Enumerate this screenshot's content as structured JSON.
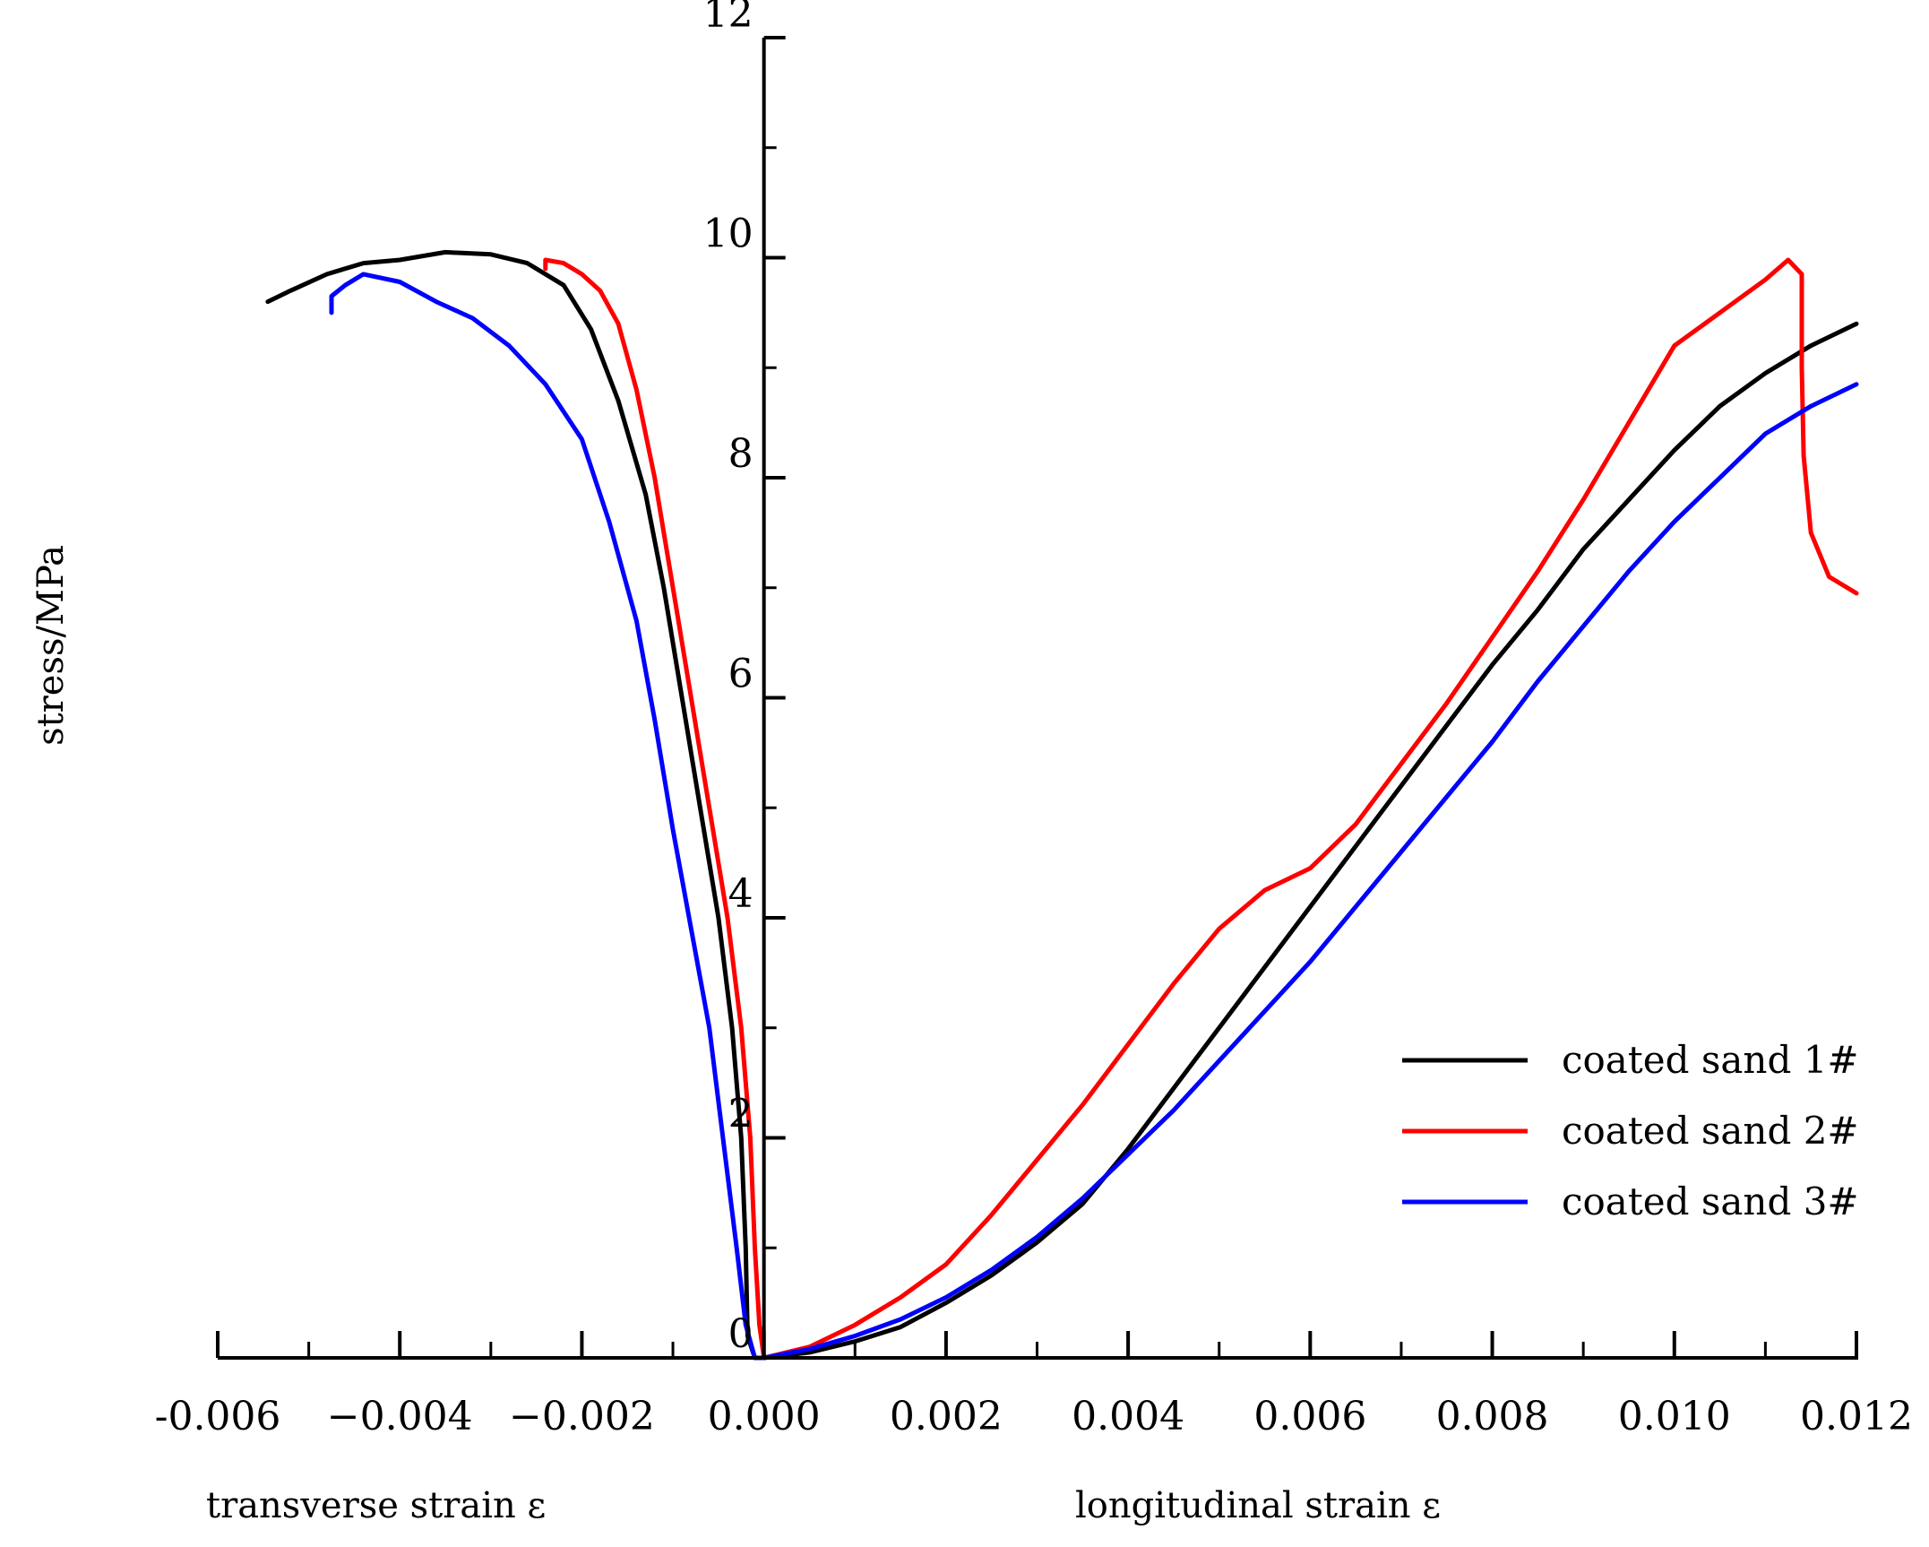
{
  "chart_data": {
    "type": "line",
    "title": "",
    "ylabel": "stress/MPa",
    "xlabel_left": "transverse strain ε",
    "xlabel_right": "longitudinal strain ε",
    "xlim": [
      -0.006,
      0.012
    ],
    "ylim": [
      0,
      12
    ],
    "x_ticks": [
      "-0.006",
      "−0.004",
      "−0.002",
      "0.000",
      "0.002",
      "0.004",
      "0.006",
      "0.008",
      "0.010",
      "0.012"
    ],
    "x_tick_values": [
      -0.006,
      -0.004,
      -0.002,
      0.0,
      0.002,
      0.004,
      0.006,
      0.008,
      0.01,
      0.012
    ],
    "y_ticks": [
      "0",
      "2",
      "4",
      "6",
      "8",
      "10",
      "12"
    ],
    "y_tick_values": [
      0,
      2,
      4,
      6,
      8,
      10,
      12
    ],
    "grid": false,
    "legend_position": "bottom-right",
    "series": [
      {
        "name": "coated sand 1#",
        "color": "#000000",
        "transverse": [
          [
            -0.00545,
            9.6
          ],
          [
            -0.0052,
            9.7
          ],
          [
            -0.0048,
            9.85
          ],
          [
            -0.0044,
            9.95
          ],
          [
            -0.004,
            9.98
          ],
          [
            -0.0035,
            10.05
          ],
          [
            -0.003,
            10.03
          ],
          [
            -0.0026,
            9.95
          ],
          [
            -0.0022,
            9.75
          ],
          [
            -0.0019,
            9.35
          ],
          [
            -0.0016,
            8.7
          ],
          [
            -0.0013,
            7.85
          ],
          [
            -0.0011,
            7.0
          ],
          [
            -0.0009,
            6.0
          ],
          [
            -0.0007,
            5.0
          ],
          [
            -0.0005,
            4.0
          ],
          [
            -0.00035,
            3.0
          ],
          [
            -0.00025,
            2.0
          ],
          [
            -0.0002,
            1.0
          ],
          [
            -0.00018,
            0.2
          ],
          [
            -0.0001,
            0.0
          ],
          [
            0.0,
            0.0
          ]
        ],
        "longitudinal": [
          [
            0.0,
            0.0
          ],
          [
            0.0005,
            0.05
          ],
          [
            0.001,
            0.15
          ],
          [
            0.0015,
            0.28
          ],
          [
            0.002,
            0.5
          ],
          [
            0.0025,
            0.75
          ],
          [
            0.003,
            1.05
          ],
          [
            0.0035,
            1.4
          ],
          [
            0.004,
            1.9
          ],
          [
            0.0045,
            2.45
          ],
          [
            0.005,
            3.0
          ],
          [
            0.0055,
            3.55
          ],
          [
            0.006,
            4.1
          ],
          [
            0.0065,
            4.65
          ],
          [
            0.007,
            5.2
          ],
          [
            0.0075,
            5.75
          ],
          [
            0.008,
            6.3
          ],
          [
            0.0085,
            6.8
          ],
          [
            0.009,
            7.35
          ],
          [
            0.0095,
            7.8
          ],
          [
            0.01,
            8.25
          ],
          [
            0.0105,
            8.65
          ],
          [
            0.011,
            8.95
          ],
          [
            0.0115,
            9.2
          ],
          [
            0.012,
            9.4
          ]
        ]
      },
      {
        "name": "coated sand 2#",
        "color": "#ff0000",
        "transverse": [
          [
            -0.0024,
            9.9
          ],
          [
            -0.0024,
            9.98
          ],
          [
            -0.0022,
            9.95
          ],
          [
            -0.002,
            9.85
          ],
          [
            -0.0018,
            9.7
          ],
          [
            -0.0016,
            9.4
          ],
          [
            -0.0014,
            8.8
          ],
          [
            -0.0012,
            8.0
          ],
          [
            -0.001,
            7.0
          ],
          [
            -0.0008,
            6.0
          ],
          [
            -0.0006,
            5.0
          ],
          [
            -0.0004,
            4.0
          ],
          [
            -0.00025,
            3.0
          ],
          [
            -0.00015,
            2.0
          ],
          [
            -0.0001,
            1.0
          ],
          [
            -5e-05,
            0.3
          ],
          [
            0.0,
            0.0
          ]
        ],
        "longitudinal": [
          [
            0.0,
            0.0
          ],
          [
            0.0005,
            0.1
          ],
          [
            0.001,
            0.3
          ],
          [
            0.0015,
            0.55
          ],
          [
            0.002,
            0.85
          ],
          [
            0.0025,
            1.3
          ],
          [
            0.003,
            1.8
          ],
          [
            0.0035,
            2.3
          ],
          [
            0.004,
            2.85
          ],
          [
            0.0045,
            3.4
          ],
          [
            0.005,
            3.9
          ],
          [
            0.0055,
            4.25
          ],
          [
            0.006,
            4.45
          ],
          [
            0.0065,
            4.85
          ],
          [
            0.007,
            5.4
          ],
          [
            0.0075,
            5.95
          ],
          [
            0.008,
            6.55
          ],
          [
            0.0085,
            7.15
          ],
          [
            0.009,
            7.8
          ],
          [
            0.0095,
            8.5
          ],
          [
            0.01,
            9.2
          ],
          [
            0.0105,
            9.5
          ],
          [
            0.011,
            9.8
          ],
          [
            0.01125,
            9.98
          ],
          [
            0.0114,
            9.85
          ],
          [
            0.0114,
            9.0
          ],
          [
            0.01142,
            8.2
          ],
          [
            0.0115,
            7.5
          ],
          [
            0.0117,
            7.1
          ],
          [
            0.012,
            6.95
          ]
        ]
      },
      {
        "name": "coated sand 3#",
        "color": "#0000ff",
        "transverse": [
          [
            -0.00475,
            9.5
          ],
          [
            -0.00475,
            9.65
          ],
          [
            -0.0046,
            9.75
          ],
          [
            -0.0044,
            9.85
          ],
          [
            -0.004,
            9.78
          ],
          [
            -0.0036,
            9.6
          ],
          [
            -0.0032,
            9.45
          ],
          [
            -0.0028,
            9.2
          ],
          [
            -0.0024,
            8.85
          ],
          [
            -0.002,
            8.35
          ],
          [
            -0.0017,
            7.6
          ],
          [
            -0.0014,
            6.7
          ],
          [
            -0.0012,
            5.8
          ],
          [
            -0.001,
            4.8
          ],
          [
            -0.0008,
            3.9
          ],
          [
            -0.0006,
            3.0
          ],
          [
            -0.00045,
            2.0
          ],
          [
            -0.0003,
            1.0
          ],
          [
            -0.0002,
            0.3
          ],
          [
            -0.0001,
            0.0
          ],
          [
            0.0,
            0.0
          ]
        ],
        "longitudinal": [
          [
            0.0,
            0.0
          ],
          [
            0.0005,
            0.08
          ],
          [
            0.001,
            0.2
          ],
          [
            0.0015,
            0.35
          ],
          [
            0.002,
            0.55
          ],
          [
            0.0025,
            0.8
          ],
          [
            0.003,
            1.1
          ],
          [
            0.0035,
            1.45
          ],
          [
            0.004,
            1.85
          ],
          [
            0.0045,
            2.25
          ],
          [
            0.005,
            2.7
          ],
          [
            0.0055,
            3.15
          ],
          [
            0.006,
            3.6
          ],
          [
            0.0065,
            4.1
          ],
          [
            0.007,
            4.6
          ],
          [
            0.0075,
            5.1
          ],
          [
            0.008,
            5.6
          ],
          [
            0.0085,
            6.15
          ],
          [
            0.009,
            6.65
          ],
          [
            0.0095,
            7.15
          ],
          [
            0.01,
            7.6
          ],
          [
            0.0105,
            8.0
          ],
          [
            0.011,
            8.4
          ],
          [
            0.0115,
            8.65
          ],
          [
            0.012,
            8.85
          ]
        ]
      }
    ]
  }
}
